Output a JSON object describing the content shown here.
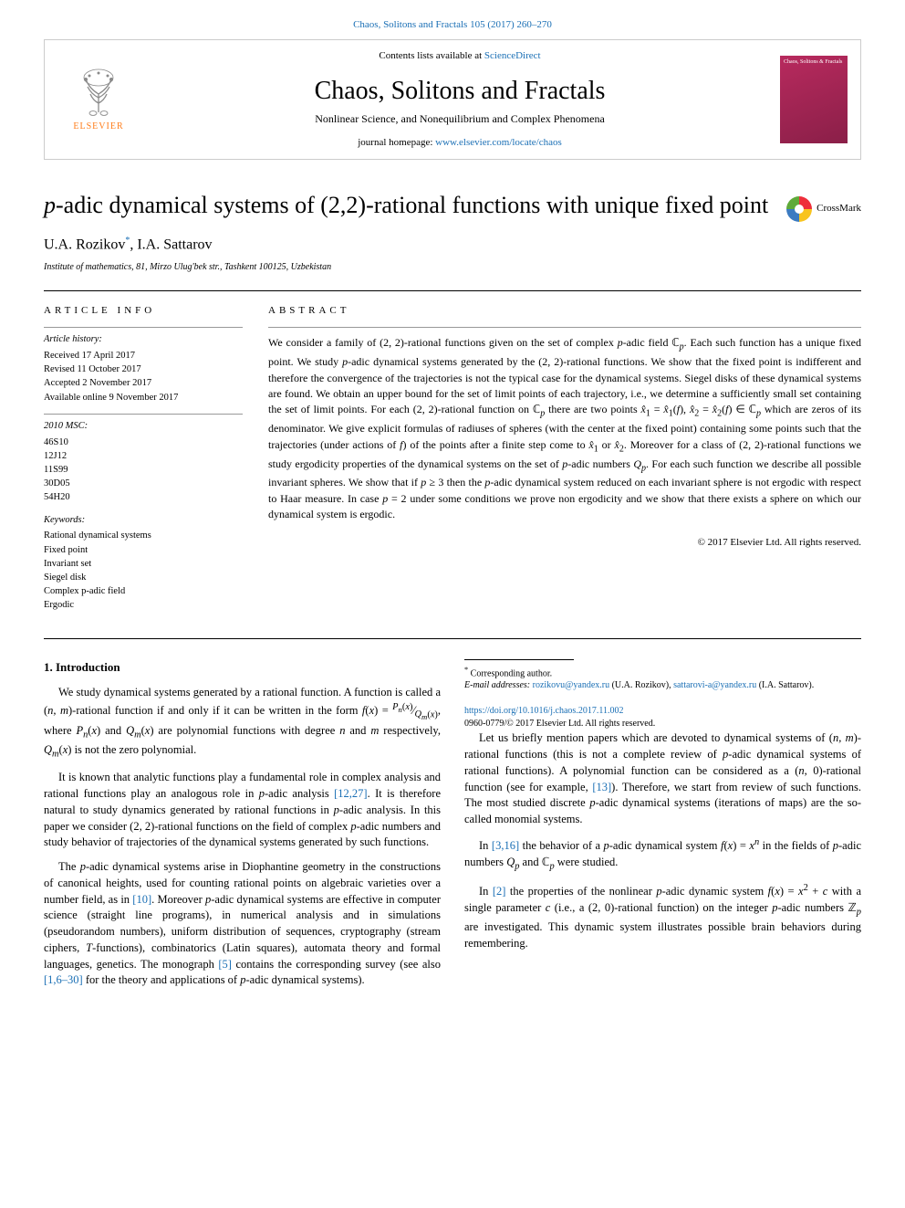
{
  "citation": "Chaos, Solitons and Fractals 105 (2017) 260–270",
  "banner": {
    "publisher": "ELSEVIER",
    "contents_prefix": "Contents lists available at ",
    "contents_link": "ScienceDirect",
    "journal": "Chaos, Solitons and Fractals",
    "subtitle": "Nonlinear Science, and Nonequilibrium and Complex Phenomena",
    "homepage_prefix": "journal homepage: ",
    "homepage_link": "www.elsevier.com/locate/chaos",
    "cover_text": "Chaos,\nSolitons\n& Fractals"
  },
  "crossmark": "CrossMark",
  "title_html": "<span class=\"italic\">p</span>-adic dynamical systems of (2,2)-rational functions with unique fixed point",
  "authors_html": "U.A. Rozikov<sup>*</sup>, I.A. Sattarov",
  "affiliation": "Institute of mathematics, 81, Mirzo Ulug'bek str., Tashkent 100125, Uzbekistan",
  "info": {
    "heading": "ARTICLE INFO",
    "history_label": "Article history:",
    "history": [
      "Received 17 April 2017",
      "Revised 11 October 2017",
      "Accepted 2 November 2017",
      "Available online 9 November 2017"
    ],
    "msc_label": "2010 MSC:",
    "msc": [
      "46S10",
      "12J12",
      "11S99",
      "30D05",
      "54H20"
    ],
    "keywords_label": "Keywords:",
    "keywords": [
      "Rational dynamical systems",
      "Fixed point",
      "Invariant set",
      "Siegel disk",
      "Complex p-adic field",
      "Ergodic"
    ]
  },
  "abstract": {
    "heading": "ABSTRACT",
    "body_html": "We consider a family of (2, 2)-rational functions given on the set of complex <span class=\"italic\">p</span>-adic field ℂ<sub><i>p</i></sub>. Each such function has a unique fixed point. We study <span class=\"italic\">p</span>-adic dynamical systems generated by the (2, 2)-rational functions. We show that the fixed point is indifferent and therefore the convergence of the trajectories is not the typical case for the dynamical systems. Siegel disks of these dynamical systems are found. We obtain an upper bound for the set of limit points of each trajectory, i.e., we determine a sufficiently small set containing the set of limit points. For each (2, 2)-rational function on ℂ<sub><i>p</i></sub> there are two points <i>x̂</i><sub>1</sub> = <i>x̂</i><sub>1</sub>(<i>f</i>), <i>x̂</i><sub>2</sub> = <i>x̂</i><sub>2</sub>(<i>f</i>) ∈ ℂ<sub><i>p</i></sub> which are zeros of its denominator. We give explicit formulas of radiuses of spheres (with the center at the fixed point) containing some points such that the trajectories (under actions of <i>f</i>) of the points after a finite step come to <i>x̂</i><sub>1</sub> or <i>x̂</i><sub>2</sub>. Moreover for a class of (2, 2)-rational functions we study ergodicity properties of the dynamical systems on the set of <span class=\"italic\">p</span>-adic numbers <i>Q<sub>p</sub></i>. For each such function we describe all possible invariant spheres. We show that if <i>p</i> ≥ 3 then the <span class=\"italic\">p</span>-adic dynamical system reduced on each invariant sphere is not ergodic with respect to Haar measure. In case <i>p</i> = 2 under some conditions we prove non ergodicity and we show that there exists a sphere on which our dynamical system is ergodic.",
    "copyright": "© 2017 Elsevier Ltd. All rights reserved."
  },
  "section_heading": "1. Introduction",
  "paragraphs": [
    "We study dynamical systems generated by a rational function. A function is called a (<i>n, m</i>)-rational function if and only if it can be written in the form <i>f</i>(<i>x</i>) = <sup><i>P<sub>n</sub></i>(<i>x</i>)</sup>&frasl;<sub><i>Q<sub>m</sub></i>(<i>x</i>)</sub>, where <i>P<sub>n</sub></i>(<i>x</i>) and <i>Q<sub>m</sub></i>(<i>x</i>) are polynomial functions with degree <i>n</i> and <i>m</i> respectively, <i>Q<sub>m</sub></i>(<i>x</i>) is not the zero polynomial.",
    "It is known that analytic functions play a fundamental role in complex analysis and rational functions play an analogous role in <span class=\"italic\">p</span>-adic analysis <span class=\"ref-link\">[12,27]</span>. It is therefore natural to study dynamics generated by rational functions in <span class=\"italic\">p</span>-adic analysis. In this paper we consider (2, 2)-rational functions on the field of complex <span class=\"italic\">p</span>-adic numbers and study behavior of trajectories of the dynamical systems generated by such functions.",
    "The <span class=\"italic\">p</span>-adic dynamical systems arise in Diophantine geometry in the constructions of canonical heights, used for counting rational points on algebraic varieties over a number field, as in <span class=\"ref-link\">[10]</span>. Moreover <span class=\"italic\">p</span>-adic dynamical systems are effective in computer science (straight line programs), in numerical analysis and in simulations (pseudorandom numbers), uniform distribution of sequences, cryptography (stream ciphers, <i>T</i>-functions), combinatorics (Latin squares), automata theory and formal languages, genetics. The monograph <span class=\"ref-link\">[5]</span> contains the corresponding survey (see also <span class=\"ref-link\">[1,6–30]</span> for the theory and applications of <span class=\"italic\">p</span>-adic dynamical systems).",
    "Let us briefly mention papers which are devoted to dynamical systems of (<i>n, m</i>)-rational functions (this is not a complete review of <span class=\"italic\">p</span>-adic dynamical systems of rational functions). A polynomial function can be considered as a (<i>n</i>, 0)-rational function (see for example, <span class=\"ref-link\">[13]</span>). Therefore, we start from review of such functions. The most studied discrete <span class=\"italic\">p</span>-adic dynamical systems (iterations of maps) are the so-called monomial systems.",
    "In <span class=\"ref-link\">[3,16]</span> the behavior of a <span class=\"italic\">p</span>-adic dynamical system <i>f</i>(<i>x</i>) = <i>x<sup>n</sup></i> in the fields of <span class=\"italic\">p</span>-adic numbers <i>Q<sub>p</sub></i> and ℂ<sub><i>p</i></sub> were studied.",
    "In <span class=\"ref-link\">[2]</span> the properties of the nonlinear <span class=\"italic\">p</span>-adic dynamic system <i>f</i>(<i>x</i>) = <i>x</i><sup>2</sup> + <i>c</i> with a single parameter <i>c</i> (i.e., a (2, 0)-rational function) on the integer <span class=\"italic\">p</span>-adic numbers ℤ<sub><i>p</i></sub> are investigated. This dynamic system illustrates possible brain behaviors during remembering."
  ],
  "footnotes": {
    "corresponding": "Corresponding author.",
    "email_label": "E-mail addresses:",
    "email1": "rozikovu@yandex.ru",
    "email1_name": "(U.A. Rozikov),",
    "email2": "sattarovi-a@yandex.ru",
    "email2_name": "(I.A. Sattarov)."
  },
  "doi": {
    "link": "https://doi.org/10.1016/j.chaos.2017.11.002",
    "issn_line": "0960-0779/© 2017 Elsevier Ltd. All rights reserved."
  },
  "colors": {
    "link": "#1a6fb5",
    "publisher_orange": "#ff7d1a",
    "cover_bg": "#b82a5e",
    "rule": "#999999"
  }
}
